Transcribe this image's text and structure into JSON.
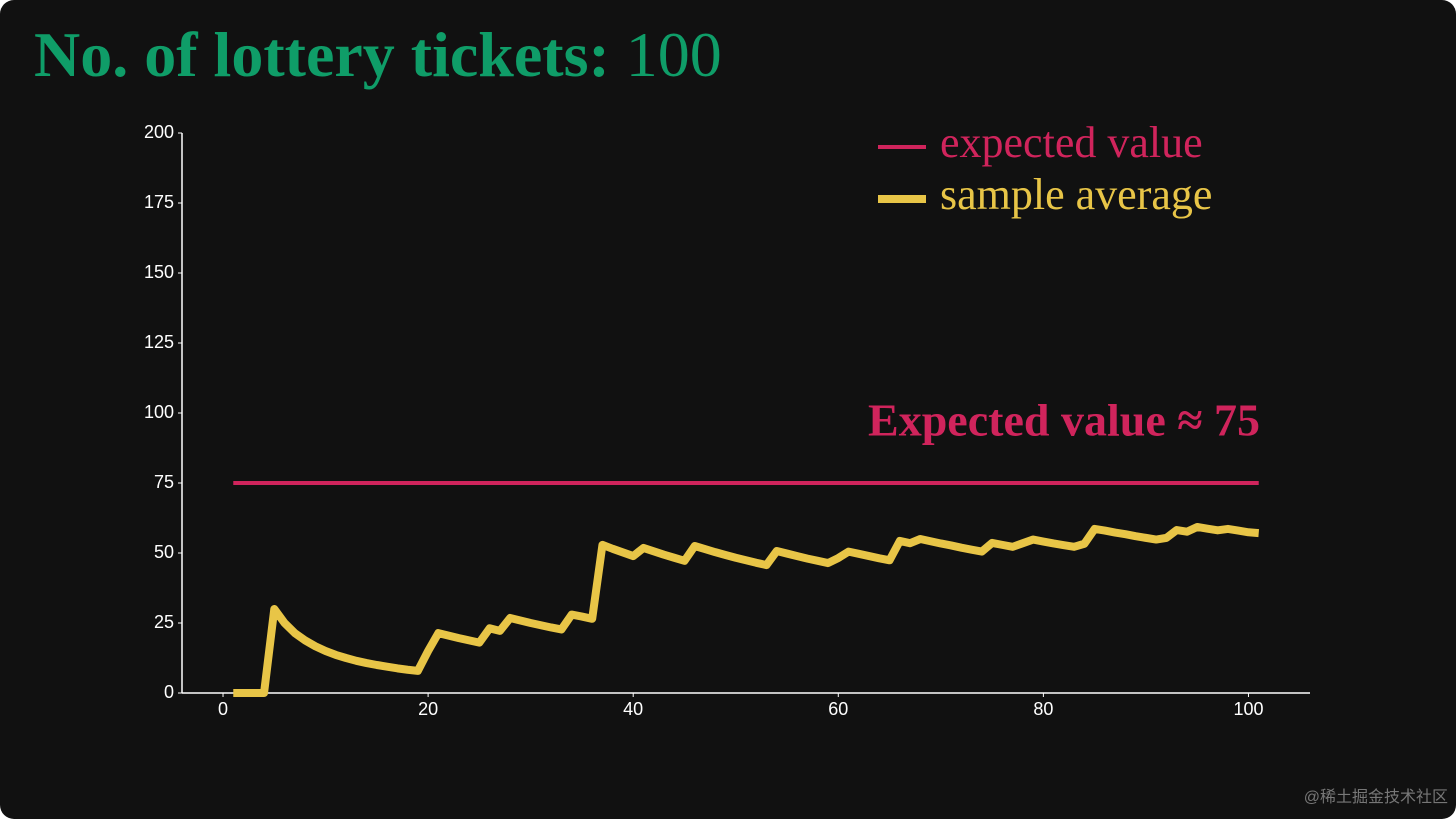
{
  "chart_data": {
    "type": "line",
    "title": "No. of lottery tickets:",
    "ticket_count": 100,
    "annotation": "Expected value ≈ 75",
    "watermark": "@稀土掘金技术社区",
    "x": [
      1,
      2,
      3,
      4,
      5,
      6,
      7,
      8,
      9,
      10,
      11,
      12,
      13,
      14,
      15,
      16,
      17,
      18,
      19,
      20,
      21,
      22,
      23,
      24,
      25,
      26,
      27,
      28,
      29,
      30,
      31,
      32,
      33,
      34,
      35,
      36,
      37,
      38,
      39,
      40,
      41,
      42,
      43,
      44,
      45,
      46,
      47,
      48,
      49,
      50,
      51,
      52,
      53,
      54,
      55,
      56,
      57,
      58,
      59,
      60,
      61,
      62,
      63,
      64,
      65,
      66,
      67,
      68,
      69,
      70,
      71,
      72,
      73,
      74,
      75,
      76,
      77,
      78,
      79,
      80,
      81,
      82,
      83,
      84,
      85,
      86,
      87,
      88,
      89,
      90,
      91,
      92,
      93,
      94,
      95,
      96,
      97,
      98,
      99,
      100,
      101
    ],
    "series": [
      {
        "name": "expected value",
        "color": "#d0245c",
        "x": [
          1,
          101
        ],
        "values": [
          75,
          75
        ]
      },
      {
        "name": "sample average",
        "color": "#e8c547",
        "values": [
          0,
          0,
          0,
          0,
          30,
          25,
          21.4,
          18.8,
          16.7,
          15,
          13.6,
          12.5,
          11.5,
          10.7,
          10,
          9.4,
          8.8,
          8.3,
          7.9,
          15,
          21.4,
          20.5,
          19.6,
          18.8,
          18,
          23.1,
          22.2,
          26.8,
          25.9,
          25,
          24.2,
          23.4,
          22.7,
          28,
          27.3,
          26.5,
          52.9,
          51.5,
          50.2,
          48.9,
          51.8,
          50.6,
          49.4,
          48.3,
          47.2,
          52.5,
          51.4,
          50.3,
          49.3,
          48.3,
          47.4,
          46.5,
          45.7,
          50.7,
          49.8,
          48.9,
          48,
          47.2,
          46.4,
          48.2,
          50.5,
          49.7,
          48.9,
          48.1,
          47.4,
          54.3,
          53.5,
          55,
          54.2,
          53.4,
          52.7,
          51.9,
          51.2,
          50.5,
          53.6,
          52.9,
          52.2,
          53.5,
          54.8,
          54.1,
          53.4,
          52.8,
          52.2,
          53.3,
          58.6,
          58,
          57.3,
          56.7,
          56,
          55.4,
          54.8,
          55.4,
          58.2,
          57.6,
          59.3,
          58.7,
          58.1,
          58.6,
          58,
          57.4,
          57.1
        ]
      }
    ],
    "xlim": [
      -4,
      106
    ],
    "ylim": [
      0,
      200
    ],
    "xticks": [
      0,
      20,
      40,
      60,
      80,
      100
    ],
    "yticks": [
      0,
      25,
      50,
      75,
      100,
      125,
      150,
      175,
      200
    ],
    "legend": "upper right"
  }
}
